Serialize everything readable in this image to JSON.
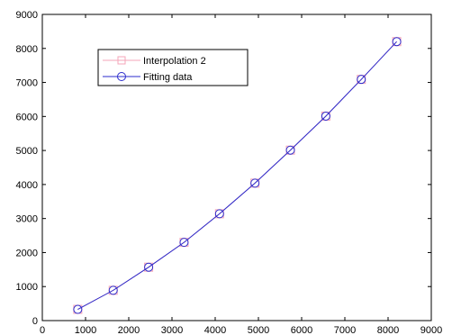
{
  "chart_data": {
    "type": "line",
    "xlim": [
      0,
      9000
    ],
    "ylim": [
      0,
      9000
    ],
    "xticks": [
      "0",
      "1000",
      "2000",
      "3000",
      "4000",
      "5000",
      "6000",
      "7000",
      "8000",
      "9000"
    ],
    "yticks": [
      "0",
      "1000",
      "2000",
      "3000",
      "4000",
      "5000",
      "6000",
      "7000",
      "8000",
      "9000"
    ],
    "grid": false,
    "legend_position": "top-left",
    "series": [
      {
        "name": "Interpolation 2",
        "color": "#f4a6b8",
        "marker": "square",
        "x": [
          820,
          1640,
          2460,
          3280,
          4100,
          4920,
          5740,
          6560,
          7380,
          8200
        ],
        "y": [
          330,
          890,
          1570,
          2300,
          3140,
          4040,
          5010,
          6010,
          7090,
          8200
        ]
      },
      {
        "name": "Fitting data",
        "color": "#2b2bcc",
        "marker": "circle",
        "x": [
          820,
          1640,
          2460,
          3280,
          4100,
          4920,
          5740,
          6560,
          7380,
          8200
        ],
        "y": [
          330,
          890,
          1570,
          2300,
          3140,
          4040,
          5010,
          6010,
          7090,
          8200
        ]
      }
    ]
  }
}
